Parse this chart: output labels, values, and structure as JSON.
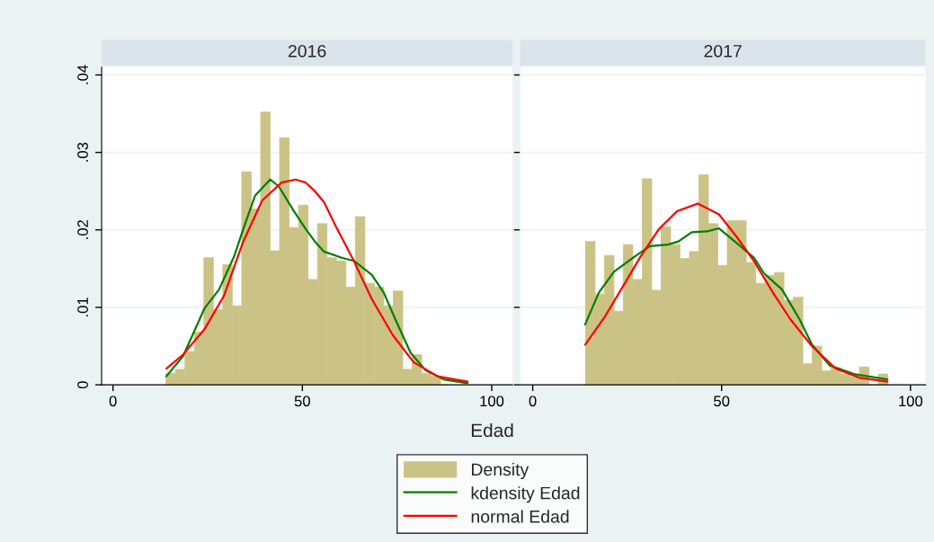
{
  "chart_data": [
    {
      "type": "histogram",
      "title": "2016",
      "xlabel": "Edad",
      "legend": "bottom",
      "grid": "y",
      "bins": [
        14,
        16.5,
        19,
        21.5,
        24,
        26.5,
        29,
        31.5,
        34,
        36.5,
        39,
        41.5,
        44,
        46.5,
        49,
        51.5,
        54,
        56.5,
        59,
        61.5,
        64,
        66.5,
        69,
        71.5,
        74,
        76.5,
        79,
        81.5,
        84,
        86.5,
        89,
        91.5,
        94
      ],
      "xlim": [
        -3,
        105.5
      ],
      "xticks": [
        0,
        50,
        100
      ],
      "ylim": [
        0,
        0.041
      ],
      "yticks": [
        0,
        {
          "value": 0.01,
          "label": ".01"
        },
        {
          "value": 0.02,
          "label": ".02"
        },
        {
          "value": 0.03,
          "label": ".03"
        },
        {
          "value": 0.04,
          "label": ".04"
        }
      ],
      "series": [
        {
          "name": "Density",
          "color": "#cbc385",
          "values": [
            0.0015,
            0.002,
            0.0043,
            0.0068,
            0.0164,
            0.0097,
            0.0155,
            0.0102,
            0.0275,
            0.0227,
            0.0352,
            0.0173,
            0.0319,
            0.0203,
            0.0232,
            0.0136,
            0.0208,
            0.0164,
            0.016,
            0.0126,
            0.0217,
            0.0131,
            0.0126,
            0.0102,
            0.0121,
            0.002,
            0.0039,
            0.0015,
            0.0011,
            0,
            null,
            null
          ]
        },
        {
          "type": "line",
          "name": "kdensity Edad",
          "color": "#007f00",
          "x": [
            14.1,
            18.5,
            24.2,
            28.0,
            32.0,
            34.4,
            37.5,
            41.5,
            43.8,
            47.8,
            50.9,
            53.3,
            55.7,
            60.4,
            63.6,
            68.3,
            71.5,
            74.6,
            78.6,
            82.5,
            87.3,
            93.6
          ],
          "values": [
            0.0011,
            0.0037,
            0.0099,
            0.0123,
            0.0166,
            0.0201,
            0.0244,
            0.0265,
            0.0256,
            0.0224,
            0.0201,
            0.0185,
            0.0172,
            0.0164,
            0.016,
            0.0142,
            0.0119,
            0.0084,
            0.0041,
            0.0019,
            0.0007,
            0.0002
          ]
        },
        {
          "type": "line",
          "name": "normal Edad",
          "color": "#ff0000",
          "x": [
            14.1,
            18.5,
            24.2,
            29.3,
            34.4,
            39.4,
            44.5,
            48.2,
            50.9,
            53.3,
            55.7,
            58.8,
            63.6,
            68.3,
            73.9,
            79.4,
            85.7,
            93.6
          ],
          "values": [
            0.0021,
            0.0039,
            0.0072,
            0.0115,
            0.0185,
            0.0238,
            0.0261,
            0.0265,
            0.0261,
            0.025,
            0.0236,
            0.0205,
            0.016,
            0.0111,
            0.0064,
            0.0029,
            0.0011,
            0.0004
          ]
        }
      ]
    },
    {
      "type": "histogram",
      "title": "2017",
      "grid": "y",
      "tick_labels": "x",
      "bins": [
        14,
        16.5,
        19,
        21.5,
        24,
        26.5,
        29,
        31.5,
        34,
        36.5,
        39,
        41.5,
        44,
        46.5,
        49,
        51.5,
        54,
        56.5,
        59,
        61.5,
        64,
        66.5,
        69,
        71.5,
        74,
        76.5,
        79,
        81.5,
        84,
        86.5,
        89,
        91.5,
        94
      ],
      "xlim": [
        -3.3,
        104
      ],
      "xticks": [
        0,
        50,
        100
      ],
      "ylim": [
        0,
        0.041
      ],
      "yticks": [
        0,
        0.01,
        0.02,
        0.03,
        0.04
      ],
      "series": [
        {
          "color": "#cbc385",
          "values": [
            0.0185,
            0.0117,
            0.0167,
            0.0095,
            0.0181,
            0.0136,
            0.0266,
            0.0122,
            0.0204,
            0.0181,
            0.0163,
            0.0172,
            0.0271,
            0.0208,
            0.0154,
            0.0212,
            0.0212,
            0.0158,
            0.0131,
            0.0141,
            0.0145,
            0.0109,
            0.0113,
            0.0027,
            0.005,
            0.0018,
            0.0022,
            0.0014,
            0.001,
            0.0023,
            0,
            0.0014
          ]
        },
        {
          "type": "line",
          "color": "#007f00",
          "x": [
            13.9,
            17.5,
            21.5,
            27.1,
            31.0,
            35.8,
            38.6,
            42.1,
            46.1,
            49.3,
            54.0,
            58.6,
            61.2,
            66.0,
            70.7,
            73.9,
            78.6,
            85.0,
            93.9
          ],
          "values": [
            0.0078,
            0.0119,
            0.0146,
            0.0166,
            0.0179,
            0.0181,
            0.0185,
            0.0197,
            0.0198,
            0.0202,
            0.0183,
            0.0164,
            0.0144,
            0.0123,
            0.0084,
            0.0052,
            0.0025,
            0.0014,
            0.0007
          ]
        },
        {
          "type": "line",
          "color": "#ff0000",
          "x": [
            13.9,
            19.1,
            23.9,
            28.6,
            33.4,
            38.2,
            43.7,
            49.3,
            54.0,
            58.8,
            63.6,
            68.3,
            73.9,
            80.2,
            86.6,
            93.9
          ],
          "values": [
            0.0052,
            0.0088,
            0.0127,
            0.0166,
            0.0201,
            0.0224,
            0.0234,
            0.022,
            0.0191,
            0.0158,
            0.0119,
            0.0084,
            0.005,
            0.0021,
            0.0009,
            0.0004
          ]
        }
      ]
    }
  ]
}
